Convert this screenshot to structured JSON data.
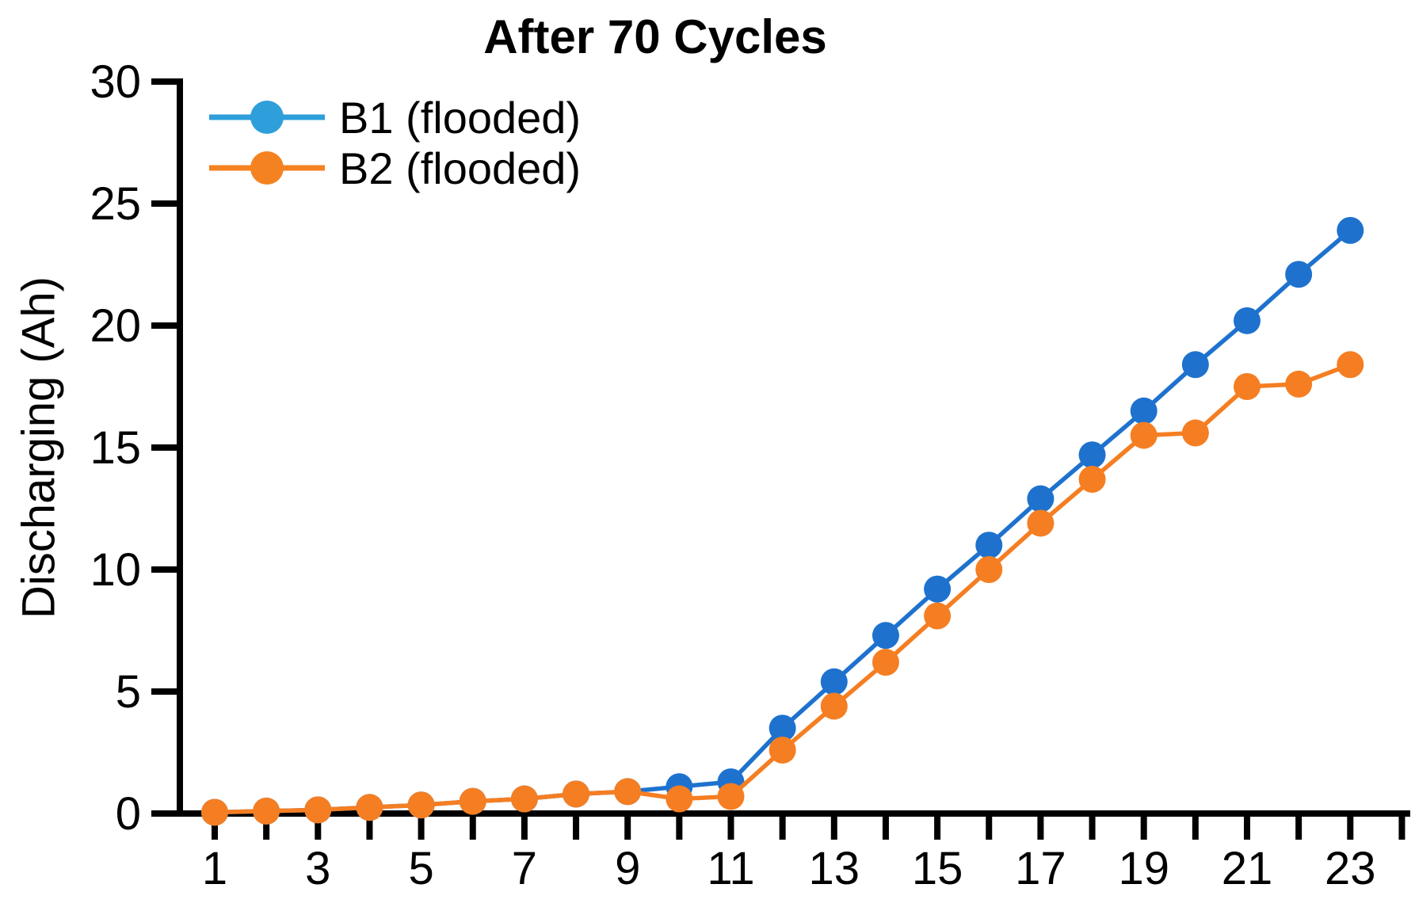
{
  "chart_data": {
    "type": "line",
    "title": "After 70 Cycles",
    "xlabel": "",
    "ylabel": "Discharging (Ah)",
    "xlim": [
      0.3,
      24.3
    ],
    "ylim": [
      0,
      30
    ],
    "grid": false,
    "legend_position": "upper-left",
    "axis_color": "#000000",
    "yticks": [
      0,
      5,
      10,
      15,
      20,
      25,
      30
    ],
    "xticks_all": [
      1,
      2,
      3,
      4,
      5,
      6,
      7,
      8,
      9,
      10,
      11,
      12,
      13,
      14,
      15,
      16,
      17,
      18,
      19,
      20,
      21,
      22,
      23,
      24
    ],
    "xticks_labeled": [
      1,
      3,
      5,
      7,
      9,
      11,
      13,
      15,
      17,
      19,
      21,
      23
    ],
    "x": [
      1,
      2,
      3,
      4,
      5,
      6,
      7,
      8,
      9,
      10,
      11,
      12,
      13,
      14,
      15,
      16,
      17,
      18,
      19,
      20,
      21,
      22,
      23
    ],
    "series": [
      {
        "name": "B1 (flooded)",
        "color": "#1e72ce",
        "legend_color": "#2e9fda",
        "marker": "circle",
        "values": [
          0.05,
          0.1,
          0.15,
          0.25,
          0.35,
          0.5,
          0.6,
          0.8,
          0.9,
          1.1,
          1.3,
          3.5,
          5.4,
          7.3,
          9.2,
          11.0,
          12.9,
          14.7,
          16.5,
          18.4,
          20.2,
          22.1,
          23.9
        ]
      },
      {
        "name": "B2 (flooded)",
        "color": "#f57e22",
        "legend_color": "#f58220",
        "marker": "circle",
        "values": [
          0.05,
          0.1,
          0.15,
          0.25,
          0.35,
          0.5,
          0.6,
          0.8,
          0.9,
          0.6,
          0.7,
          2.6,
          4.4,
          6.2,
          8.1,
          10.0,
          11.9,
          13.7,
          15.5,
          15.6,
          17.5,
          17.6,
          18.4
        ]
      }
    ]
  }
}
